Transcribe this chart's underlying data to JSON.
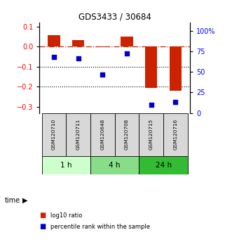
{
  "title": "GDS3433 / 30684",
  "samples": [
    "GSM120710",
    "GSM120711",
    "GSM120648",
    "GSM120708",
    "GSM120715",
    "GSM120716"
  ],
  "time_groups": [
    {
      "label": "1 h",
      "color": "#ccffcc",
      "start": 0,
      "end": 2
    },
    {
      "label": "4 h",
      "color": "#88dd88",
      "start": 2,
      "end": 4
    },
    {
      "label": "24 h",
      "color": "#33bb33",
      "start": 4,
      "end": 6
    }
  ],
  "log10_ratio": [
    0.055,
    0.032,
    -0.004,
    0.048,
    -0.205,
    -0.22
  ],
  "percentile_rank": [
    68,
    66,
    47,
    72,
    10,
    13
  ],
  "ylim_left": [
    -0.33,
    0.12
  ],
  "ylim_right": [
    0,
    110
  ],
  "yticks_left": [
    0.1,
    0.0,
    -0.1,
    -0.2,
    -0.3
  ],
  "yticks_right": [
    100,
    75,
    50,
    25,
    0
  ],
  "hline_y": 0.0,
  "dotted_lines": [
    -0.1,
    -0.2
  ],
  "bar_color": "#cc2200",
  "dot_color": "#0000cc",
  "bar_width": 0.5,
  "dot_size": 25,
  "legend_entries": [
    "log10 ratio",
    "percentile rank within the sample"
  ],
  "legend_colors": [
    "#cc2200",
    "#0000cc"
  ],
  "time_label": "time"
}
